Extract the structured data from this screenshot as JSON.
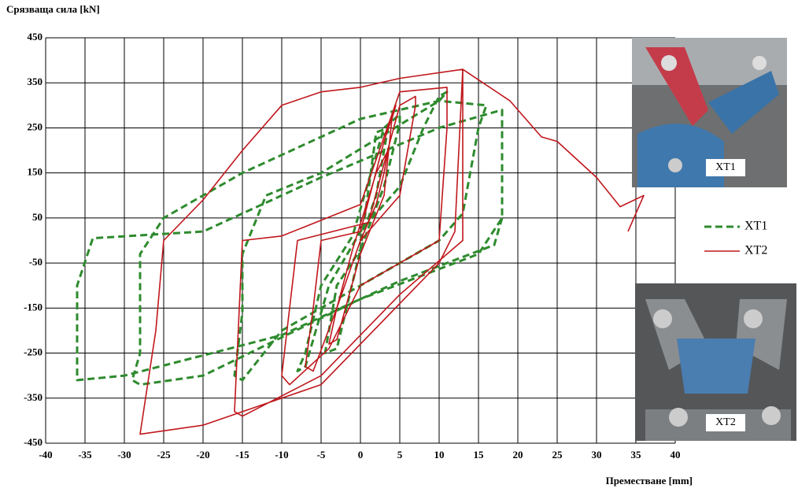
{
  "chart_data": {
    "type": "line",
    "y_label": "Срязваща  сила [kN]",
    "x_label": "Преместване [mm]",
    "xlim": [
      -40,
      40
    ],
    "xticks": [
      -40,
      -35,
      -30,
      -25,
      -20,
      -15,
      -10,
      -5,
      0,
      5,
      10,
      15,
      20,
      25,
      30,
      35,
      40
    ],
    "ylim": [
      -450,
      450
    ],
    "yticks": [
      -450,
      -350,
      -250,
      -150,
      -50,
      50,
      150,
      250,
      350,
      450
    ],
    "grid": true,
    "legend": "right",
    "series": [
      {
        "name": "XT1",
        "color": "#2e8b2e",
        "dash": true,
        "x": [
          0,
          2,
          3,
          3.5,
          2,
          0,
          -3,
          -4,
          -4.5,
          -3,
          0,
          3,
          5,
          5,
          3,
          -1,
          -5,
          -7,
          -8,
          -7,
          -4,
          0,
          5,
          8,
          10,
          11,
          10,
          -5,
          -12,
          -15,
          -15,
          -16,
          -15,
          -10,
          0,
          10,
          13,
          15,
          16,
          10,
          0,
          -15,
          -25,
          -28,
          -28,
          -29,
          -28,
          -20,
          0,
          15,
          18,
          18,
          18,
          10,
          -5,
          -20,
          -34,
          -36,
          -36,
          -30,
          -10,
          5,
          17,
          18
        ],
        "values": [
          0,
          100,
          200,
          250,
          240,
          -20,
          -100,
          -200,
          -250,
          -240,
          -20,
          120,
          260,
          280,
          250,
          10,
          -100,
          -250,
          -290,
          -280,
          -100,
          20,
          120,
          250,
          320,
          330,
          310,
          150,
          100,
          -30,
          -160,
          -300,
          -310,
          -200,
          -100,
          0,
          60,
          250,
          300,
          310,
          270,
          150,
          50,
          -30,
          -250,
          -310,
          -320,
          -300,
          -130,
          -30,
          50,
          240,
          290,
          250,
          140,
          20,
          5,
          -100,
          -310,
          -300,
          -210,
          -90,
          -10,
          50
        ]
      },
      {
        "name": "XT2",
        "color": "#c0171c",
        "dash": false,
        "x": [
          0,
          2,
          3,
          3.5,
          2,
          -1,
          -3,
          -4,
          -3,
          0,
          3,
          4,
          4.5,
          3,
          0,
          -5,
          -6,
          -7,
          -6,
          -3,
          0,
          5,
          7,
          7,
          5,
          1,
          -8,
          -10,
          -9,
          -4,
          0,
          10,
          11,
          11,
          5,
          0,
          -10,
          -15,
          -16,
          -15,
          -5,
          5,
          13,
          13,
          13,
          5,
          0,
          -5,
          -10,
          -15,
          -20,
          -25,
          -26,
          -28,
          -20,
          -5,
          10,
          12,
          13,
          19,
          23,
          25,
          30,
          33,
          36,
          35,
          34
        ],
        "values": [
          0,
          80,
          150,
          200,
          150,
          -20,
          -150,
          -230,
          -220,
          -30,
          100,
          270,
          300,
          220,
          20,
          0,
          -150,
          -280,
          -290,
          -150,
          0,
          100,
          300,
          320,
          300,
          40,
          0,
          -300,
          -320,
          -240,
          -100,
          0,
          250,
          340,
          330,
          80,
          10,
          0,
          -380,
          -390,
          -300,
          -120,
          0,
          300,
          380,
          360,
          340,
          330,
          300,
          200,
          90,
          0,
          -200,
          -430,
          -410,
          -320,
          -50,
          20,
          380,
          310,
          230,
          220,
          140,
          75,
          100,
          60,
          20
        ]
      }
    ],
    "insets": [
      {
        "label": "XT1"
      },
      {
        "label": "XT2"
      }
    ]
  }
}
